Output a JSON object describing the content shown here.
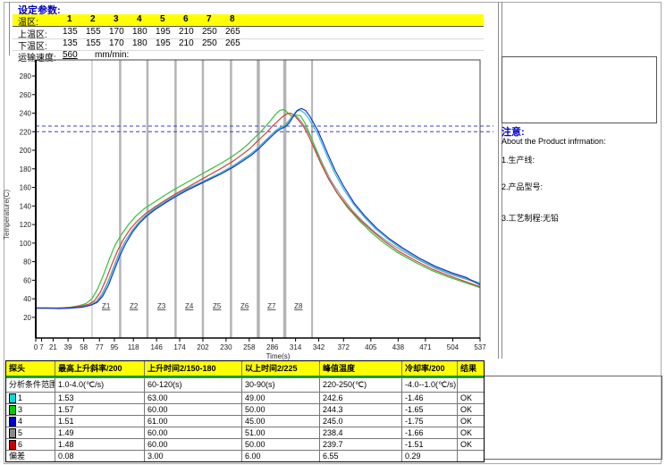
{
  "params": {
    "title": "设定参数:",
    "zone_row_label": "温区:",
    "zone_numbers": [
      "1",
      "2",
      "3",
      "4",
      "5",
      "6",
      "7",
      "8"
    ],
    "upper_label": "上温区:",
    "upper_values": [
      "135",
      "155",
      "170",
      "180",
      "195",
      "210",
      "250",
      "265"
    ],
    "lower_label": "下温区:",
    "lower_values": [
      "135",
      "155",
      "170",
      "180",
      "195",
      "210",
      "250",
      "265"
    ],
    "speed_label": "运输速度:",
    "speed_value": "560",
    "speed_unit": "mm/min:"
  },
  "chart_data": {
    "type": "line",
    "xlabel": "Time(s)",
    "ylabel": "Temperature(C)",
    "xlim": [
      0,
      537
    ],
    "ylim": [
      0,
      290
    ],
    "x_ticks": [
      0,
      7,
      21,
      39,
      58,
      77,
      95,
      118,
      146,
      174,
      202,
      230,
      258,
      286,
      314,
      342,
      372,
      405,
      438,
      471,
      504,
      537
    ],
    "y_ticks": [
      20,
      40,
      60,
      80,
      100,
      120,
      140,
      160,
      180,
      200,
      220,
      240,
      260,
      280
    ],
    "limit_lines": {
      "values": [
        220,
        226
      ],
      "color": "#3c3ccc"
    },
    "zones": {
      "boundaries_t": [
        68,
        102,
        135,
        169,
        202,
        236,
        269,
        301,
        334
      ],
      "labels": [
        "Z1",
        "Z2",
        "Z3",
        "Z4",
        "Z5",
        "Z6",
        "Z7",
        "Z8"
      ],
      "line_color": "#b4b4b4"
    },
    "series": [
      {
        "name": "5",
        "color": "#9a9a9a",
        "points": [
          [
            0,
            30
          ],
          [
            15,
            30
          ],
          [
            28,
            30
          ],
          [
            42,
            30.5
          ],
          [
            55,
            31.5
          ],
          [
            65,
            33.5
          ],
          [
            73,
            37
          ],
          [
            80,
            45
          ],
          [
            87,
            58
          ],
          [
            94,
            74
          ],
          [
            101,
            90
          ],
          [
            108,
            102
          ],
          [
            116,
            113
          ],
          [
            124,
            122
          ],
          [
            134,
            130
          ],
          [
            145,
            137
          ],
          [
            157,
            144
          ],
          [
            170,
            151
          ],
          [
            184,
            158
          ],
          [
            198,
            164
          ],
          [
            212,
            170
          ],
          [
            226,
            177
          ],
          [
            240,
            184
          ],
          [
            251,
            191
          ],
          [
            261,
            197
          ],
          [
            270,
            204
          ],
          [
            278,
            211
          ],
          [
            285,
            217
          ],
          [
            291,
            222
          ],
          [
            296,
            225
          ],
          [
            301,
            227
          ],
          [
            306,
            232
          ],
          [
            311,
            238
          ],
          [
            316,
            236
          ],
          [
            321,
            231
          ],
          [
            327,
            223
          ],
          [
            333,
            213
          ],
          [
            340,
            199
          ],
          [
            348,
            183
          ],
          [
            357,
            167
          ],
          [
            369,
            151
          ],
          [
            382,
            136
          ],
          [
            396,
            123
          ],
          [
            411,
            111
          ],
          [
            426,
            101
          ],
          [
            442,
            92
          ],
          [
            462,
            82
          ],
          [
            482,
            73
          ],
          [
            502,
            66
          ],
          [
            520,
            61
          ],
          [
            537,
            56
          ]
        ]
      },
      {
        "name": "3",
        "color": "#35c135",
        "points": [
          [
            0,
            30
          ],
          [
            15,
            30
          ],
          [
            28,
            30
          ],
          [
            42,
            31
          ],
          [
            52,
            32.5
          ],
          [
            61,
            35
          ],
          [
            68,
            40
          ],
          [
            75,
            51
          ],
          [
            82,
            66
          ],
          [
            89,
            83
          ],
          [
            96,
            98
          ],
          [
            104,
            110
          ],
          [
            112,
            120
          ],
          [
            121,
            129
          ],
          [
            131,
            137
          ],
          [
            143,
            144
          ],
          [
            155,
            151
          ],
          [
            168,
            158
          ],
          [
            182,
            165
          ],
          [
            196,
            172
          ],
          [
            210,
            179
          ],
          [
            224,
            186
          ],
          [
            237,
            193
          ],
          [
            248,
            200
          ],
          [
            257,
            207
          ],
          [
            265,
            214
          ],
          [
            272,
            220
          ],
          [
            278,
            226
          ],
          [
            284,
            232
          ],
          [
            290,
            239
          ],
          [
            295,
            243
          ],
          [
            300,
            244
          ],
          [
            305,
            240
          ],
          [
            310,
            236
          ],
          [
            315,
            238
          ],
          [
            320,
            237
          ],
          [
            325,
            230
          ],
          [
            331,
            218
          ],
          [
            337,
            204
          ],
          [
            344,
            188
          ],
          [
            353,
            171
          ],
          [
            364,
            154
          ],
          [
            377,
            138
          ],
          [
            391,
            124
          ],
          [
            406,
            111
          ],
          [
            421,
            100
          ],
          [
            437,
            90
          ],
          [
            457,
            80
          ],
          [
            477,
            71
          ],
          [
            497,
            64
          ],
          [
            517,
            58
          ],
          [
            537,
            52
          ]
        ]
      },
      {
        "name": "6",
        "color": "#d04040",
        "points": [
          [
            0,
            30
          ],
          [
            15,
            30
          ],
          [
            28,
            30
          ],
          [
            42,
            30.5
          ],
          [
            54,
            32
          ],
          [
            64,
            34
          ],
          [
            71,
            38
          ],
          [
            78,
            47
          ],
          [
            85,
            61
          ],
          [
            92,
            77
          ],
          [
            99,
            92
          ],
          [
            106,
            104
          ],
          [
            114,
            115
          ],
          [
            123,
            124
          ],
          [
            133,
            132
          ],
          [
            144,
            139
          ],
          [
            156,
            146
          ],
          [
            169,
            153
          ],
          [
            183,
            160
          ],
          [
            197,
            167
          ],
          [
            211,
            174
          ],
          [
            225,
            181
          ],
          [
            238,
            188
          ],
          [
            249,
            195
          ],
          [
            259,
            202
          ],
          [
            267,
            209
          ],
          [
            274,
            215
          ],
          [
            280,
            220
          ],
          [
            286,
            226
          ],
          [
            292,
            231
          ],
          [
            298,
            236
          ],
          [
            303,
            239
          ],
          [
            308,
            240
          ],
          [
            313,
            237
          ],
          [
            318,
            232
          ],
          [
            324,
            225
          ],
          [
            330,
            215
          ],
          [
            337,
            201
          ],
          [
            345,
            185
          ],
          [
            354,
            169
          ],
          [
            366,
            152
          ],
          [
            379,
            137
          ],
          [
            393,
            124
          ],
          [
            408,
            112
          ],
          [
            423,
            101
          ],
          [
            439,
            91
          ],
          [
            459,
            81
          ],
          [
            479,
            72
          ],
          [
            499,
            65
          ],
          [
            518,
            59
          ],
          [
            537,
            53
          ]
        ]
      },
      {
        "name": "1",
        "color": "#2bc0d4",
        "points": [
          [
            0,
            30
          ],
          [
            15,
            30
          ],
          [
            28,
            29.5
          ],
          [
            42,
            30
          ],
          [
            55,
            31
          ],
          [
            65,
            33
          ],
          [
            73,
            36
          ],
          [
            80,
            44
          ],
          [
            87,
            57
          ],
          [
            94,
            73
          ],
          [
            101,
            89
          ],
          [
            108,
            102
          ],
          [
            116,
            113
          ],
          [
            124,
            122
          ],
          [
            133,
            130
          ],
          [
            143,
            137
          ],
          [
            155,
            144
          ],
          [
            168,
            151
          ],
          [
            182,
            158
          ],
          [
            196,
            164
          ],
          [
            210,
            170
          ],
          [
            224,
            176
          ],
          [
            238,
            183
          ],
          [
            250,
            190
          ],
          [
            260,
            196
          ],
          [
            269,
            203
          ],
          [
            277,
            210
          ],
          [
            284,
            216
          ],
          [
            290,
            221
          ],
          [
            295,
            224
          ],
          [
            300,
            226
          ],
          [
            305,
            230
          ],
          [
            310,
            237
          ],
          [
            315,
            242
          ],
          [
            320,
            243
          ],
          [
            325,
            240
          ],
          [
            330,
            234
          ],
          [
            335,
            226
          ],
          [
            340,
            219
          ],
          [
            345,
            209
          ],
          [
            352,
            194
          ],
          [
            361,
            176
          ],
          [
            372,
            158
          ],
          [
            384,
            142
          ],
          [
            397,
            128
          ],
          [
            411,
            115
          ],
          [
            426,
            104
          ],
          [
            442,
            94
          ],
          [
            462,
            83
          ],
          [
            482,
            74
          ],
          [
            502,
            67
          ],
          [
            520,
            62
          ],
          [
            537,
            57
          ]
        ]
      },
      {
        "name": "4",
        "color": "#2030c8",
        "points": [
          [
            0,
            30
          ],
          [
            15,
            30
          ],
          [
            28,
            29.5
          ],
          [
            42,
            30
          ],
          [
            56,
            31
          ],
          [
            66,
            33
          ],
          [
            74,
            36
          ],
          [
            81,
            43
          ],
          [
            88,
            55
          ],
          [
            95,
            71
          ],
          [
            102,
            87
          ],
          [
            109,
            100
          ],
          [
            117,
            112
          ],
          [
            125,
            121
          ],
          [
            134,
            129
          ],
          [
            144,
            136
          ],
          [
            156,
            143
          ],
          [
            169,
            150
          ],
          [
            183,
            157
          ],
          [
            197,
            163
          ],
          [
            211,
            169
          ],
          [
            225,
            175
          ],
          [
            239,
            182
          ],
          [
            251,
            189
          ],
          [
            261,
            195
          ],
          [
            270,
            202
          ],
          [
            278,
            209
          ],
          [
            285,
            215
          ],
          [
            291,
            220
          ],
          [
            296,
            223
          ],
          [
            301,
            225
          ],
          [
            306,
            229
          ],
          [
            311,
            236
          ],
          [
            316,
            243
          ],
          [
            321,
            245
          ],
          [
            326,
            243
          ],
          [
            331,
            237
          ],
          [
            336,
            229
          ],
          [
            341,
            221
          ],
          [
            346,
            211
          ],
          [
            353,
            196
          ],
          [
            362,
            178
          ],
          [
            373,
            160
          ],
          [
            385,
            143
          ],
          [
            398,
            129
          ],
          [
            412,
            116
          ],
          [
            427,
            105
          ],
          [
            443,
            95
          ],
          [
            463,
            84
          ],
          [
            483,
            75
          ],
          [
            503,
            68
          ],
          [
            520,
            63
          ],
          [
            537,
            55
          ]
        ]
      }
    ]
  },
  "notes": {
    "title": "注意:",
    "subtitle": "About the Product infrmation:",
    "items": [
      "1.生产线:",
      "2.产品型号:",
      "3.工艺制程:无铅"
    ]
  },
  "table": {
    "headers": [
      "探头",
      "最高上升斜率/200",
      "上升时间2/150-180",
      "以上时间2/225",
      "峰值温度",
      "冷却率/200",
      "结果"
    ],
    "criteria": [
      "分析条件范围",
      "1.0-4.0(℃/s)",
      "60-120(s)",
      "30-90(s)",
      "220-250(℃)",
      "-4.0--1.0(℃/s)",
      ""
    ],
    "rows": [
      {
        "probe": "1",
        "color": "#00dde0",
        "values": [
          "1.53",
          "63.00",
          "49.00",
          "242.6",
          "-1.46"
        ],
        "result": "OK"
      },
      {
        "probe": "3",
        "color": "#00cc00",
        "values": [
          "1.57",
          "60.00",
          "50.00",
          "244.3",
          "-1.65"
        ],
        "result": "OK"
      },
      {
        "probe": "4",
        "color": "#0000cc",
        "values": [
          "1.51",
          "61.00",
          "45.00",
          "245.0",
          "-1.75"
        ],
        "result": "OK"
      },
      {
        "probe": "5",
        "color": "#8a8a8a",
        "values": [
          "1.49",
          "60.00",
          "51.00",
          "238.4",
          "-1.66"
        ],
        "result": "OK"
      },
      {
        "probe": "6",
        "color": "#cc0000",
        "values": [
          "1.48",
          "60.00",
          "50.00",
          "239.7",
          "-1.51"
        ],
        "result": "OK"
      }
    ],
    "deviation": {
      "label": "偏差",
      "values": [
        "0.08",
        "3.00",
        "6.00",
        "6.55",
        "0.29"
      ],
      "result": ""
    }
  }
}
